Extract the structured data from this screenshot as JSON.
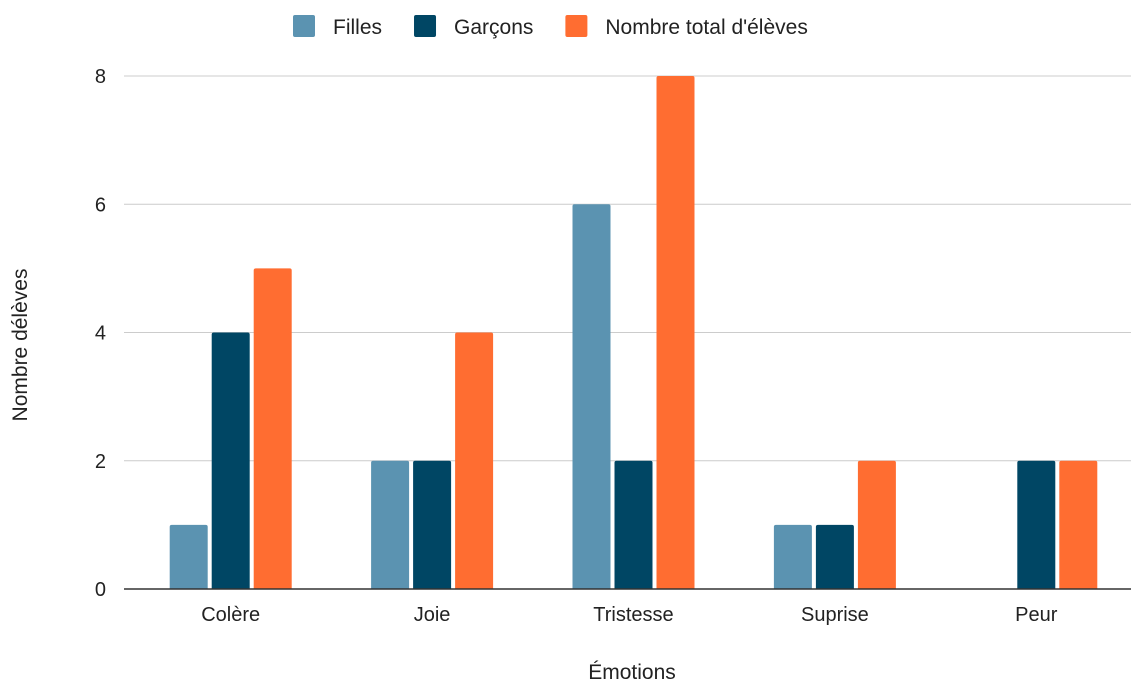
{
  "chart_data": {
    "type": "bar",
    "categories": [
      "Colère",
      "Joie",
      "Tristesse",
      "Suprise",
      "Peur"
    ],
    "series": [
      {
        "name": "Filles",
        "values": [
          1,
          2,
          6,
          1,
          0
        ],
        "color": "#5b93b1"
      },
      {
        "name": "Garçons",
        "values": [
          4,
          2,
          2,
          1,
          2
        ],
        "color": "#004664"
      },
      {
        "name": "Nombre total d'élèves",
        "values": [
          5,
          4,
          8,
          2,
          2
        ],
        "color": "#ff6d31"
      }
    ],
    "xlabel": "Émotions",
    "ylabel": "Nombre délèves",
    "ylim": [
      0,
      8
    ],
    "yticks": [
      0,
      2,
      4,
      6,
      8
    ],
    "grid": true,
    "legend_position": "top-center"
  }
}
